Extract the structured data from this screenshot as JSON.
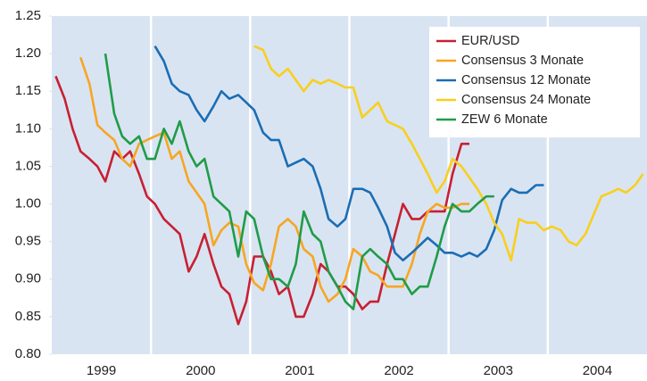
{
  "chart_data": {
    "type": "line",
    "x": [
      1999.04,
      1999.13,
      1999.21,
      1999.29,
      1999.38,
      1999.46,
      1999.54,
      1999.63,
      1999.71,
      1999.79,
      1999.88,
      1999.96,
      2000.04,
      2000.13,
      2000.21,
      2000.29,
      2000.38,
      2000.46,
      2000.54,
      2000.63,
      2000.71,
      2000.79,
      2000.88,
      2000.96,
      2001.04,
      2001.13,
      2001.21,
      2001.29,
      2001.38,
      2001.46,
      2001.54,
      2001.63,
      2001.71,
      2001.79,
      2001.88,
      2001.96,
      2002.04,
      2002.13,
      2002.21,
      2002.29,
      2002.38,
      2002.46,
      2002.54,
      2002.63,
      2002.71,
      2002.79,
      2002.88,
      2002.96,
      2003.04,
      2003.13,
      2003.21,
      2003.29,
      2003.38,
      2003.46,
      2003.54,
      2003.63,
      2003.71,
      2003.79,
      2003.88,
      2003.96,
      2004.04,
      2004.13,
      2004.21,
      2004.29,
      2004.38,
      2004.46,
      2004.54,
      2004.63,
      2004.71,
      2004.79,
      2004.88,
      2004.96
    ],
    "series": [
      {
        "name": "EUR/USD",
        "color": "#c72032",
        "values": [
          1.17,
          1.14,
          1.1,
          1.07,
          1.06,
          1.05,
          1.03,
          1.07,
          1.06,
          1.07,
          1.04,
          1.01,
          1.0,
          0.98,
          0.97,
          0.96,
          0.91,
          0.93,
          0.96,
          0.92,
          0.89,
          0.88,
          0.84,
          0.87,
          0.93,
          0.93,
          0.91,
          0.88,
          0.89,
          0.85,
          0.85,
          0.88,
          0.92,
          0.91,
          0.89,
          0.89,
          0.88,
          0.86,
          0.87,
          0.87,
          0.92,
          0.96,
          1.0,
          0.98,
          0.98,
          0.99,
          0.99,
          0.99,
          1.04,
          1.08,
          1.08,
          null,
          null,
          null,
          null,
          null,
          null,
          null,
          null,
          null,
          null,
          null,
          null,
          null,
          null,
          null,
          null,
          null,
          null,
          null,
          null,
          null
        ]
      },
      {
        "name": "Consensus 3 Monate",
        "color": "#f6a623",
        "values": [
          null,
          null,
          null,
          1.195,
          1.16,
          1.105,
          1.095,
          1.085,
          1.06,
          1.05,
          1.08,
          1.085,
          1.09,
          1.095,
          1.06,
          1.07,
          1.03,
          1.015,
          1.0,
          0.945,
          0.965,
          0.975,
          0.97,
          0.92,
          0.895,
          0.885,
          0.92,
          0.97,
          0.98,
          0.97,
          0.94,
          0.93,
          0.89,
          0.87,
          0.88,
          0.9,
          0.94,
          0.93,
          0.91,
          0.905,
          0.89,
          0.89,
          0.89,
          0.92,
          0.96,
          0.99,
          1.0,
          0.995,
          0.995,
          1.0,
          1.0,
          null,
          null,
          null,
          null,
          null,
          null,
          null,
          null,
          null,
          null,
          null,
          null,
          null,
          null,
          null,
          null,
          null,
          null,
          null,
          null,
          null
        ]
      },
      {
        "name": "Consensus 12 Monate",
        "color": "#1b6db4",
        "values": [
          null,
          null,
          null,
          null,
          null,
          null,
          null,
          null,
          null,
          null,
          null,
          null,
          1.21,
          1.19,
          1.16,
          1.15,
          1.145,
          1.125,
          1.11,
          1.13,
          1.15,
          1.14,
          1.145,
          1.135,
          1.125,
          1.095,
          1.085,
          1.085,
          1.05,
          1.055,
          1.06,
          1.05,
          1.02,
          0.98,
          0.97,
          0.98,
          1.02,
          1.02,
          1.015,
          0.995,
          0.97,
          0.935,
          0.925,
          0.935,
          0.945,
          0.955,
          0.945,
          0.935,
          0.935,
          0.93,
          0.935,
          0.93,
          0.94,
          0.965,
          1.005,
          1.02,
          1.015,
          1.015,
          1.025,
          1.025,
          null,
          null,
          null,
          null,
          null,
          null,
          null,
          null,
          null,
          null,
          null,
          null
        ]
      },
      {
        "name": "Consensus 24 Monate",
        "color": "#f8cf1e",
        "values": [
          null,
          null,
          null,
          null,
          null,
          null,
          null,
          null,
          null,
          null,
          null,
          null,
          null,
          null,
          null,
          null,
          null,
          null,
          null,
          null,
          null,
          null,
          null,
          null,
          1.21,
          1.205,
          1.18,
          1.17,
          1.18,
          1.165,
          1.15,
          1.165,
          1.16,
          1.165,
          1.16,
          1.155,
          1.155,
          1.115,
          1.125,
          1.135,
          1.11,
          1.105,
          1.1,
          1.08,
          1.06,
          1.04,
          1.015,
          1.03,
          1.06,
          1.05,
          1.035,
          1.02,
          1.0,
          0.975,
          0.96,
          0.925,
          0.98,
          0.975,
          0.975,
          0.965,
          0.97,
          0.965,
          0.95,
          0.945,
          0.96,
          0.985,
          1.01,
          1.015,
          1.02,
          1.015,
          1.025,
          1.04
        ]
      },
      {
        "name": "ZEW 6 Monate",
        "color": "#1f9c48",
        "values": [
          null,
          null,
          null,
          null,
          null,
          null,
          1.2,
          1.12,
          1.09,
          1.08,
          1.09,
          1.06,
          1.06,
          1.1,
          1.08,
          1.11,
          1.07,
          1.05,
          1.06,
          1.01,
          1.0,
          0.99,
          0.93,
          0.99,
          0.98,
          0.93,
          0.9,
          0.9,
          0.89,
          0.92,
          0.99,
          0.96,
          0.95,
          0.91,
          0.89,
          0.87,
          0.86,
          0.93,
          0.94,
          0.93,
          0.92,
          0.9,
          0.9,
          0.88,
          0.89,
          0.89,
          0.93,
          0.97,
          1.0,
          0.99,
          0.99,
          1.0,
          1.01,
          1.01,
          null,
          null,
          null,
          null,
          null,
          null,
          null,
          null,
          null,
          null,
          null,
          null,
          null,
          null,
          null,
          null,
          null,
          null
        ]
      }
    ],
    "xlim": [
      1999,
      2005
    ],
    "xticks": [
      {
        "value": 1999.5,
        "label": "1999"
      },
      {
        "value": 2000.5,
        "label": "2000"
      },
      {
        "value": 2001.5,
        "label": "2001"
      },
      {
        "value": 2002.5,
        "label": "2002"
      },
      {
        "value": 2003.5,
        "label": "2003"
      },
      {
        "value": 2004.5,
        "label": "2004"
      }
    ],
    "ylim": [
      0.8,
      1.25
    ],
    "yticks": [
      {
        "value": 0.8,
        "label": "0.80"
      },
      {
        "value": 0.85,
        "label": "0.85"
      },
      {
        "value": 0.9,
        "label": "0.90"
      },
      {
        "value": 0.95,
        "label": "0.95"
      },
      {
        "value": 1.0,
        "label": "1.00"
      },
      {
        "value": 1.05,
        "label": "1.05"
      },
      {
        "value": 1.1,
        "label": "1.10"
      },
      {
        "value": 1.15,
        "label": "1.15"
      },
      {
        "value": 1.2,
        "label": "1.20"
      },
      {
        "value": 1.25,
        "label": "1.25"
      }
    ],
    "year_separators": true,
    "background": "#d9e4f2",
    "legend": "top-right"
  }
}
